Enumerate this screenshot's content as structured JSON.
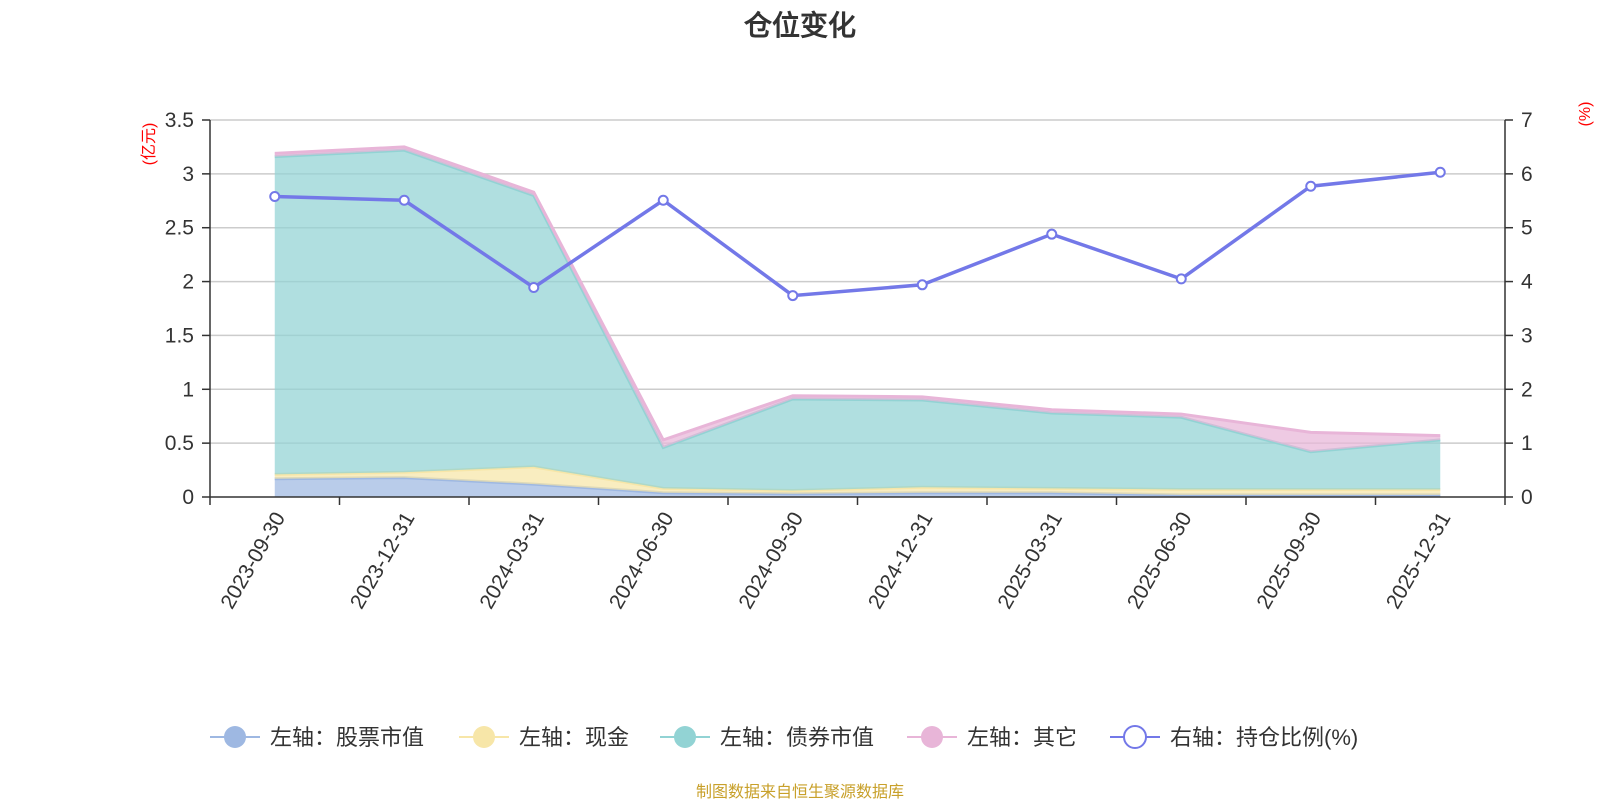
{
  "title": "仓位变化",
  "source": "制图数据来自恒生聚源数据库",
  "chart_data": {
    "type": "area",
    "categories": [
      "2023-09-30",
      "2023-12-31",
      "2024-03-31",
      "2024-06-30",
      "2024-09-30",
      "2024-12-31",
      "2025-03-31",
      "2025-06-30",
      "2025-09-30",
      "2025-12-31"
    ],
    "left_axis": {
      "unit": "(亿元)",
      "ylim": [
        0,
        3.5
      ],
      "ticks": [
        "0",
        "0.5",
        "1",
        "1.5",
        "2",
        "2.5",
        "3",
        "3.5"
      ]
    },
    "right_axis": {
      "unit": "(%)",
      "ylim": [
        0,
        7
      ],
      "ticks": [
        "0",
        "1",
        "2",
        "3",
        "4",
        "5",
        "6",
        "7"
      ]
    },
    "grid": true,
    "legend_position": "bottom",
    "stacked": true,
    "series": [
      {
        "name": "左轴：股票市值",
        "axis": "left",
        "color": "#9eb8e2",
        "values": [
          0.17,
          0.18,
          0.12,
          0.04,
          0.03,
          0.04,
          0.04,
          0.02,
          0.02,
          0.02
        ]
      },
      {
        "name": "左轴：现金",
        "axis": "left",
        "color": "#f7e6a8",
        "values": [
          0.04,
          0.05,
          0.16,
          0.04,
          0.03,
          0.05,
          0.04,
          0.05,
          0.05,
          0.05
        ]
      },
      {
        "name": "左轴：债券市值",
        "axis": "left",
        "color": "#92d3d4",
        "values": [
          2.95,
          2.99,
          2.52,
          0.38,
          0.85,
          0.81,
          0.7,
          0.67,
          0.35,
          0.46
        ]
      },
      {
        "name": "左轴：其它",
        "axis": "left",
        "color": "#e8b5d8",
        "values": [
          0.03,
          0.03,
          0.03,
          0.07,
          0.03,
          0.03,
          0.03,
          0.03,
          0.18,
          0.04
        ]
      },
      {
        "name": "右轴：持仓比例(%)",
        "axis": "right",
        "color": "#7378e8",
        "type": "line",
        "values": [
          5.58,
          5.51,
          3.89,
          5.51,
          3.74,
          3.94,
          4.88,
          4.05,
          5.77,
          6.03
        ]
      }
    ]
  }
}
